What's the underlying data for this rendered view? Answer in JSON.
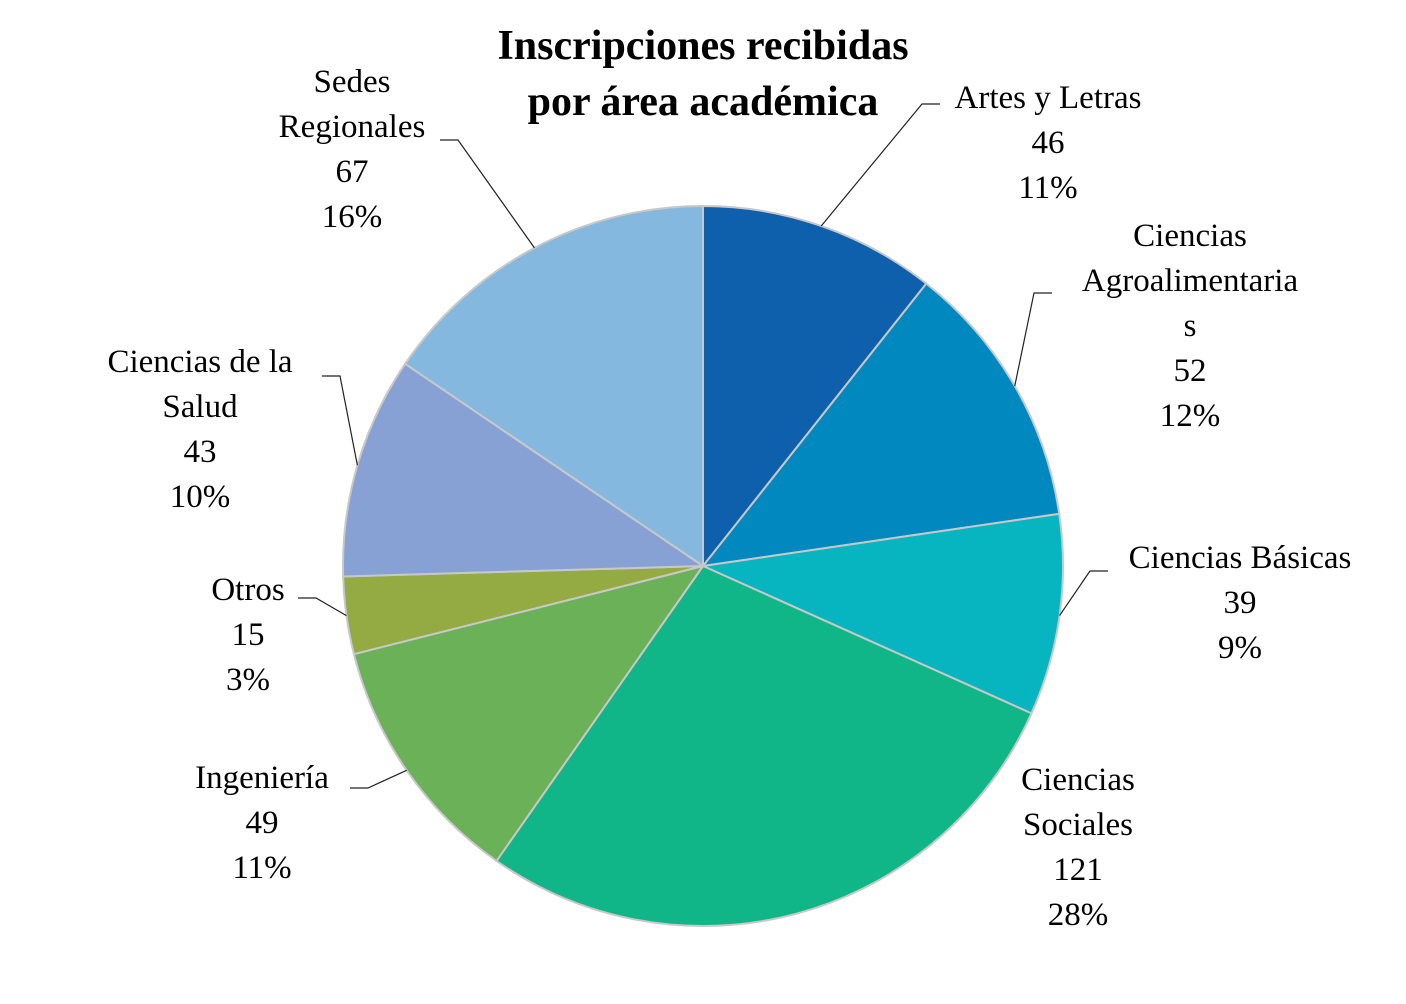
{
  "chart_data": {
    "type": "pie",
    "title": "Inscripciones recibidas por área académica",
    "title_lines": [
      "Inscripciones recibidas",
      "por área académica"
    ],
    "start_angle_deg": 0,
    "direction": "clockwise",
    "slices": [
      {
        "label_lines": [
          "Artes y Letras"
        ],
        "label": "Artes y Letras",
        "value": 46,
        "value_text": "46",
        "percent": "11%",
        "color": "#0e5fac"
      },
      {
        "label_lines": [
          "Ciencias",
          "Agroalimentaria",
          "s"
        ],
        "label": "Ciencias Agroalimentarias",
        "value": 52,
        "value_text": "52",
        "percent": "12%",
        "color": "#0088bf"
      },
      {
        "label_lines": [
          "Ciencias Básicas"
        ],
        "label": "Ciencias Básicas",
        "value": 39,
        "value_text": "39",
        "percent": "9%",
        "color": "#07b5c1"
      },
      {
        "label_lines": [
          "Ciencias",
          "Sociales"
        ],
        "label": "Ciencias Sociales",
        "value": 121,
        "value_text": "121",
        "percent": "28%",
        "color": "#10b687"
      },
      {
        "label_lines": [
          "Ingeniería"
        ],
        "label": "Ingeniería",
        "value": 49,
        "value_text": "49",
        "percent": "11%",
        "color": "#6bb158"
      },
      {
        "label_lines": [
          "Otros"
        ],
        "label": "Otros",
        "value": 15,
        "value_text": "15",
        "percent": "3%",
        "color": "#93ab42"
      },
      {
        "label_lines": [
          "Ciencias de la",
          "Salud"
        ],
        "label": "Ciencias de la Salud",
        "value": 43,
        "value_text": "43",
        "percent": "10%",
        "color": "#87a1d5"
      },
      {
        "label_lines": [
          "Sedes",
          "Regionales"
        ],
        "label": "Sedes Regionales",
        "value": 67,
        "value_text": "67",
        "percent": "16%",
        "color": "#84b8df"
      }
    ]
  }
}
